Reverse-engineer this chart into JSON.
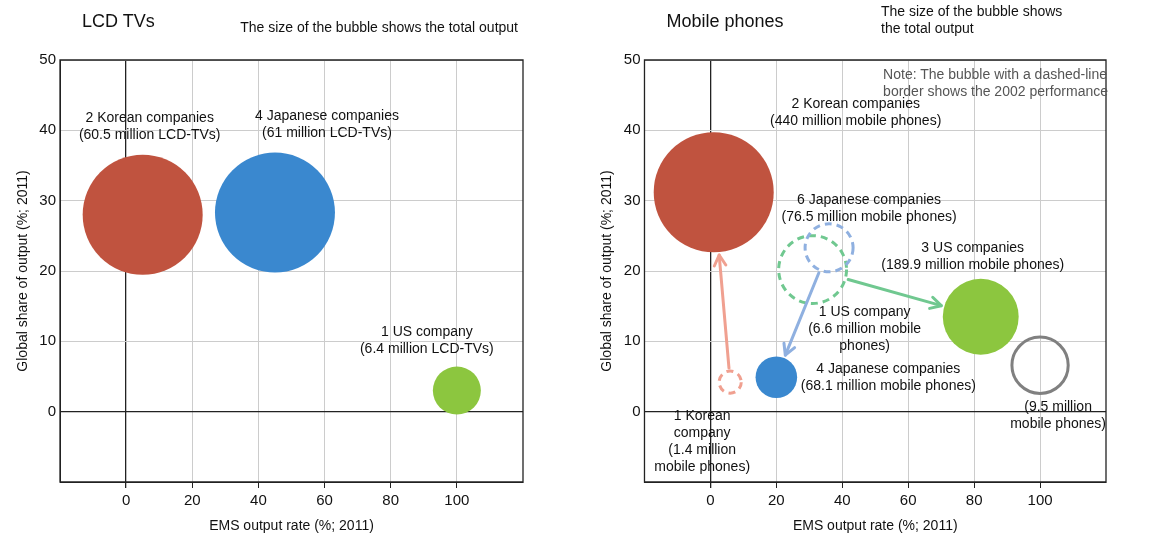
{
  "chart_data": [
    {
      "type": "bubble",
      "title": "LCD TVs",
      "xlabel": "EMS output rate (%; 2011)",
      "ylabel": "Global share of output (%; 2011)",
      "xlim": [
        -20,
        120
      ],
      "ylim": [
        -10,
        50
      ],
      "xticks": [
        0,
        20,
        40,
        60,
        80,
        100
      ],
      "yticks": [
        0,
        10,
        20,
        30,
        40,
        50
      ],
      "grid": true,
      "legend": false,
      "series": [
        {
          "name": "2 Korean companies\n(60.5 million LCD-TVs)",
          "color": "#c0533f",
          "x": [
            5
          ],
          "values": [
            28
          ],
          "sizes": [
            1
          ]
        },
        {
          "name": "4 Japanese companies\n(61 million LCD-TVs)",
          "color": "#3a88cf",
          "x": [
            45
          ],
          "values": [
            28.3
          ],
          "sizes": [
            1
          ]
        },
        {
          "name": "1 US company\n(6.4 million LCD-TVs)",
          "color": "#8cc63f",
          "x": [
            100
          ],
          "values": [
            3
          ],
          "sizes": [
            0.16
          ]
        }
      ],
      "annotations": [
        "The size of the bubble shows the total output"
      ]
    },
    {
      "type": "bubble",
      "title": "Mobile phones",
      "xlabel": "EMS output rate (%; 2011)",
      "ylabel": "Global share of output (%; 2011)",
      "xlim": [
        -20,
        120
      ],
      "ylim": [
        -10,
        50
      ],
      "xticks": [
        0,
        20,
        40,
        60,
        80,
        100
      ],
      "yticks": [
        0,
        10,
        20,
        30,
        40,
        50
      ],
      "grid": true,
      "legend": false,
      "series": [
        {
          "name": "2 Korean companies\n(440 million mobile phones)",
          "color": "#c0533f",
          "x": [
            1
          ],
          "values": [
            31.2
          ],
          "sizes": [
            1
          ]
        },
        {
          "name": "4 Japanese companies\n(68.1 million mobile phones)",
          "color": "#3a88cf",
          "x": [
            20
          ],
          "values": [
            4.9
          ],
          "sizes": [
            0.12
          ]
        },
        {
          "name": "3 US companies\n(189.9 million mobile phones)",
          "color": "#8cc63f",
          "x": [
            82
          ],
          "values": [
            13.5
          ],
          "sizes": [
            0.4
          ]
        },
        {
          "name": "(9.5 million\nmobile phones)",
          "color": "#808080",
          "x": [
            100
          ],
          "values": [
            6.6
          ],
          "sizes": [
            0.22
          ],
          "line_style": "solid"
        },
        {
          "color": "#f0a090",
          "x": [
            6
          ],
          "values": [
            4.2
          ],
          "sizes": [
            0.034
          ],
          "line_style": "dashed"
        },
        {
          "color": "#8fb0e0",
          "x": [
            36
          ],
          "values": [
            23.3
          ],
          "sizes": [
            0.16
          ],
          "line_style": "dashed"
        },
        {
          "color": "#70c890",
          "x": [
            31
          ],
          "values": [
            20.2
          ],
          "sizes": [
            0.32
          ],
          "line_style": "dashed"
        }
      ],
      "annotations": [
        "The size of the bubble shows\nthe total output",
        "Note: The bubble with a dashed-line\nborder shows the 2002 performance",
        "1 Korean\ncompany\n(1.4 million\nmobile phones)",
        "6 Japanese companies\n(76.5 million mobile phones)",
        "1 US company\n(6.6 million mobile\nphones)"
      ]
    }
  ]
}
